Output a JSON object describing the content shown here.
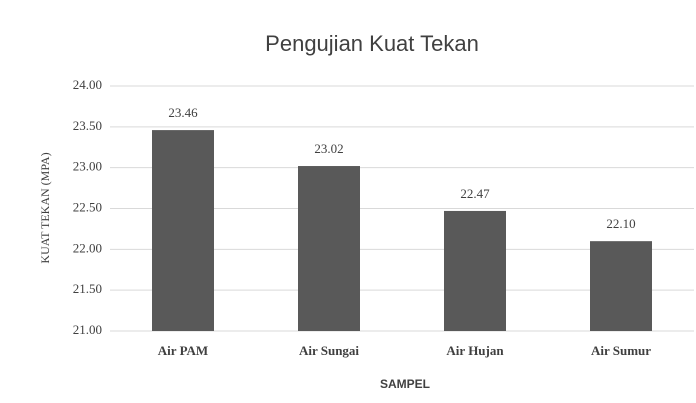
{
  "chart_data": {
    "type": "bar",
    "title": "Pengujian Kuat Tekan",
    "x_label": "SAMPEL",
    "y_label": "KUAT TEKAN (MPA)",
    "categories": [
      "Air PAM",
      "Air Sungai",
      "Air Hujan",
      "Air Sumur"
    ],
    "values": [
      23.46,
      23.02,
      22.47,
      22.1
    ],
    "value_labels": [
      "23.46",
      "23.02",
      "22.47",
      "22.10"
    ],
    "color": "#595959",
    "ylim": [
      21,
      24
    ],
    "yticks": [
      {
        "value": 21,
        "label": "21.00"
      },
      {
        "value": 21.5,
        "label": "21.50"
      },
      {
        "value": 22,
        "label": "22.00"
      },
      {
        "value": 22.5,
        "label": "22.50"
      },
      {
        "value": 23,
        "label": "23.00"
      },
      {
        "value": 23.5,
        "label": "23.50"
      },
      {
        "value": 24,
        "label": "24.00"
      }
    ],
    "grid": true
  }
}
